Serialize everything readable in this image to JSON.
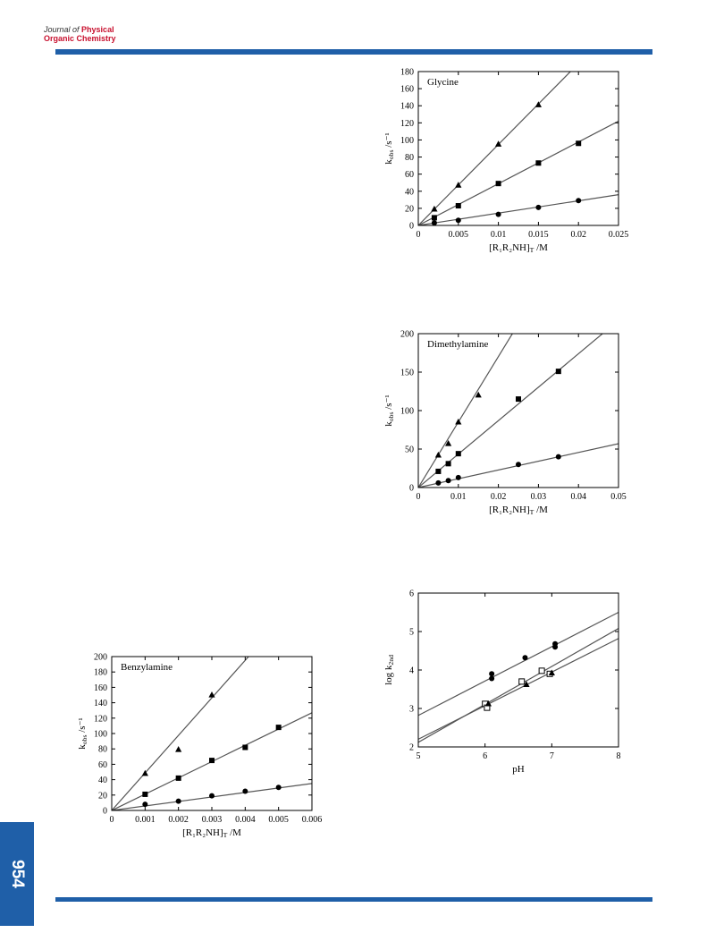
{
  "header": {
    "journal_line1_prefix": "Journal of",
    "journal_line1_suffix": "Physical",
    "journal_line2": "Organic Chemistry"
  },
  "page_number": "954",
  "colors": {
    "accent": "#1f5fa8",
    "brand": "#c8102e",
    "line": "#555555"
  },
  "chart_data": [
    {
      "id": "glycine",
      "type": "scatter",
      "title": "Glycine",
      "xlabel": "[R₁R₂NH]T /M",
      "ylabel": "kobs /s⁻¹",
      "xlim": [
        0,
        0.025
      ],
      "ylim": [
        0,
        180
      ],
      "xticks": [
        0,
        0.005,
        0.01,
        0.015,
        0.02,
        0.025
      ],
      "xtick_labels": [
        "0",
        "0.005",
        "0.01",
        "0.015",
        "0.02",
        "0.025"
      ],
      "yticks": [
        0,
        20,
        40,
        60,
        80,
        100,
        120,
        140,
        160,
        180
      ],
      "ytick_labels": [
        "0",
        "20",
        "40",
        "60",
        "80",
        "100",
        "120",
        "140",
        "160",
        "180"
      ],
      "legend": "none",
      "series": [
        {
          "marker": "triangle",
          "x": [
            0.002,
            0.005,
            0.01,
            0.015
          ],
          "y": [
            19,
            47,
            95,
            141
          ],
          "fit": [
            [
              0,
              0
            ],
            [
              0.019,
              180
            ]
          ]
        },
        {
          "marker": "square",
          "x": [
            0.002,
            0.005,
            0.01,
            0.015,
            0.02
          ],
          "y": [
            9,
            23,
            49,
            73,
            96
          ],
          "fit": [
            [
              0,
              0
            ],
            [
              0.025,
              122
            ]
          ]
        },
        {
          "marker": "circle",
          "x": [
            0.002,
            0.005,
            0.01,
            0.015,
            0.02
          ],
          "y": [
            3,
            6,
            13,
            21,
            29
          ],
          "fit": [
            [
              0,
              0
            ],
            [
              0.025,
              36
            ]
          ]
        }
      ]
    },
    {
      "id": "dimethylamine",
      "type": "scatter",
      "title": "Dimethylamine",
      "xlabel": "[R₁R₂NH]T /M",
      "ylabel": "kobs /s⁻¹",
      "xlim": [
        0,
        0.05
      ],
      "ylim": [
        0,
        200
      ],
      "xticks": [
        0,
        0.01,
        0.02,
        0.03,
        0.04,
        0.05
      ],
      "xtick_labels": [
        "0",
        "0.01",
        "0.02",
        "0.03",
        "0.04",
        "0.05"
      ],
      "yticks": [
        0,
        50,
        100,
        150,
        200
      ],
      "ytick_labels": [
        "0",
        "50",
        "100",
        "150",
        "200"
      ],
      "legend": "none",
      "series": [
        {
          "marker": "triangle",
          "x": [
            0.005,
            0.0075,
            0.01,
            0.015
          ],
          "y": [
            42,
            57,
            85,
            120
          ],
          "fit": [
            [
              0,
              0
            ],
            [
              0.0235,
              200
            ]
          ]
        },
        {
          "marker": "square",
          "x": [
            0.005,
            0.0075,
            0.01,
            0.025,
            0.035
          ],
          "y": [
            21,
            31,
            44,
            115,
            151
          ],
          "fit": [
            [
              0,
              0
            ],
            [
              0.046,
              200
            ]
          ]
        },
        {
          "marker": "circle",
          "x": [
            0.005,
            0.0075,
            0.01,
            0.025,
            0.035
          ],
          "y": [
            6,
            9,
            13,
            30,
            40
          ],
          "fit": [
            [
              0,
              0
            ],
            [
              0.05,
              57
            ]
          ]
        }
      ]
    },
    {
      "id": "benzylamine",
      "type": "scatter",
      "title": "Benzylamine",
      "xlabel": "[R₁R₂NH]T /M",
      "ylabel": "kobs /s⁻¹",
      "xlim": [
        0,
        0.006
      ],
      "ylim": [
        0,
        200
      ],
      "xticks": [
        0,
        0.001,
        0.002,
        0.003,
        0.004,
        0.005,
        0.006
      ],
      "xtick_labels": [
        "0",
        "0.001",
        "0.002",
        "0.003",
        "0.004",
        "0.005",
        "0.006"
      ],
      "yticks": [
        0,
        20,
        40,
        60,
        80,
        100,
        120,
        140,
        160,
        180,
        200
      ],
      "ytick_labels": [
        "0",
        "20",
        "40",
        "60",
        "80",
        "100",
        "120",
        "140",
        "160",
        "180",
        "200"
      ],
      "legend": "none",
      "series": [
        {
          "marker": "triangle",
          "x": [
            0.001,
            0.002,
            0.003
          ],
          "y": [
            48,
            79,
            150
          ],
          "fit": [
            [
              0,
              0
            ],
            [
              0.0041,
              200
            ]
          ]
        },
        {
          "marker": "square",
          "x": [
            0.001,
            0.002,
            0.003,
            0.004,
            0.005
          ],
          "y": [
            21,
            42,
            65,
            82,
            108
          ],
          "fit": [
            [
              0,
              0
            ],
            [
              0.006,
              127
            ]
          ]
        },
        {
          "marker": "circle",
          "x": [
            0.001,
            0.002,
            0.003,
            0.004,
            0.005
          ],
          "y": [
            8,
            12,
            19,
            25,
            30
          ],
          "fit": [
            [
              0,
              0
            ],
            [
              0.006,
              35
            ]
          ]
        }
      ]
    },
    {
      "id": "ph-profile",
      "type": "scatter",
      "title": "",
      "xlabel": "pH",
      "ylabel": "log k2nd",
      "xlim": [
        5,
        8
      ],
      "ylim": [
        2,
        6
      ],
      "xticks": [
        5,
        6,
        7,
        8
      ],
      "xtick_labels": [
        "5",
        "6",
        "7",
        "8"
      ],
      "yticks": [
        2,
        3,
        4,
        5,
        6
      ],
      "ytick_labels": [
        "2",
        "3",
        "4",
        "5",
        "6"
      ],
      "legend": "none",
      "series": [
        {
          "marker": "circle",
          "x": [
            6.1,
            6.1,
            6.6,
            7.05,
            7.05
          ],
          "y": [
            3.9,
            3.78,
            4.32,
            4.68,
            4.6
          ],
          "fit": [
            [
              5,
              2.82
            ],
            [
              8,
              5.5
            ]
          ]
        },
        {
          "marker": "square-open",
          "x": [
            6.0,
            6.03,
            6.55,
            6.85,
            6.97
          ],
          "y": [
            3.12,
            3.02,
            3.7,
            3.98,
            3.9
          ],
          "fit": [
            [
              5,
              2.12
            ],
            [
              8,
              5.08
            ]
          ]
        },
        {
          "marker": "triangle",
          "x": [
            6.05,
            6.62,
            7.0
          ],
          "y": [
            3.12,
            3.62,
            3.92
          ],
          "fit": [
            [
              5,
              2.2
            ],
            [
              8,
              4.82
            ]
          ]
        }
      ]
    }
  ]
}
